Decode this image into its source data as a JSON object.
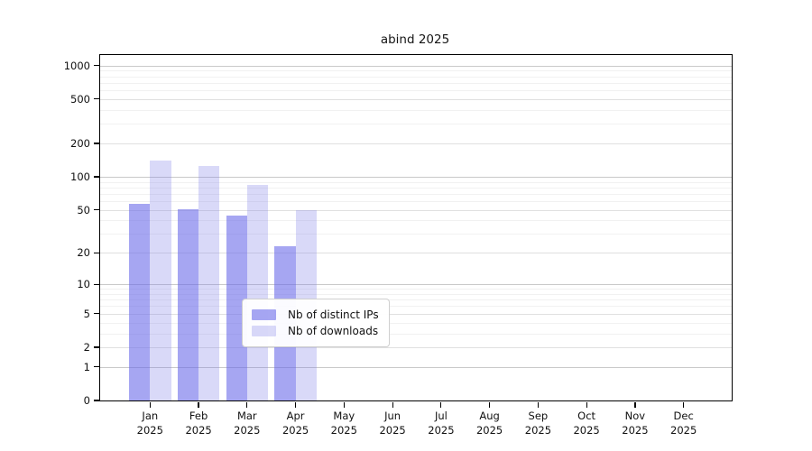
{
  "title": "abind 2025",
  "chart_data": {
    "type": "bar",
    "title": "abind 2025",
    "categories": [
      "Jan",
      "Feb",
      "Mar",
      "Apr",
      "May",
      "Jun",
      "Jul",
      "Aug",
      "Sep",
      "Oct",
      "Nov",
      "Dec"
    ],
    "category_year": "2025",
    "series": [
      {
        "name": "Nb of distinct IPs",
        "color": "#a6a6f2",
        "fill": "rgba(107,107,233,0.60)",
        "values": [
          57,
          51,
          44,
          23,
          0,
          0,
          0,
          0,
          0,
          0,
          0,
          0
        ]
      },
      {
        "name": "Nb of downloads",
        "color": "#d9d9f8",
        "fill": "rgba(128,128,232,0.30)",
        "values": [
          140,
          125,
          85,
          50,
          0,
          0,
          0,
          0,
          0,
          0,
          0,
          0
        ]
      }
    ],
    "y_scale": "log1p",
    "y_ticks": [
      0,
      1,
      2,
      5,
      10,
      20,
      50,
      100,
      200,
      500,
      1000
    ],
    "y_minor_ticks": [
      3,
      4,
      6,
      7,
      8,
      9,
      30,
      40,
      60,
      70,
      80,
      90,
      300,
      400,
      600,
      700,
      800,
      900
    ],
    "y_decade_ticks": [
      1,
      10,
      100,
      1000
    ],
    "ylim": [
      0,
      1244
    ],
    "grid": true,
    "legend_position": "inside-bottom-center",
    "legend_items": [
      "Nb of distinct IPs",
      "Nb of downloads"
    ]
  }
}
